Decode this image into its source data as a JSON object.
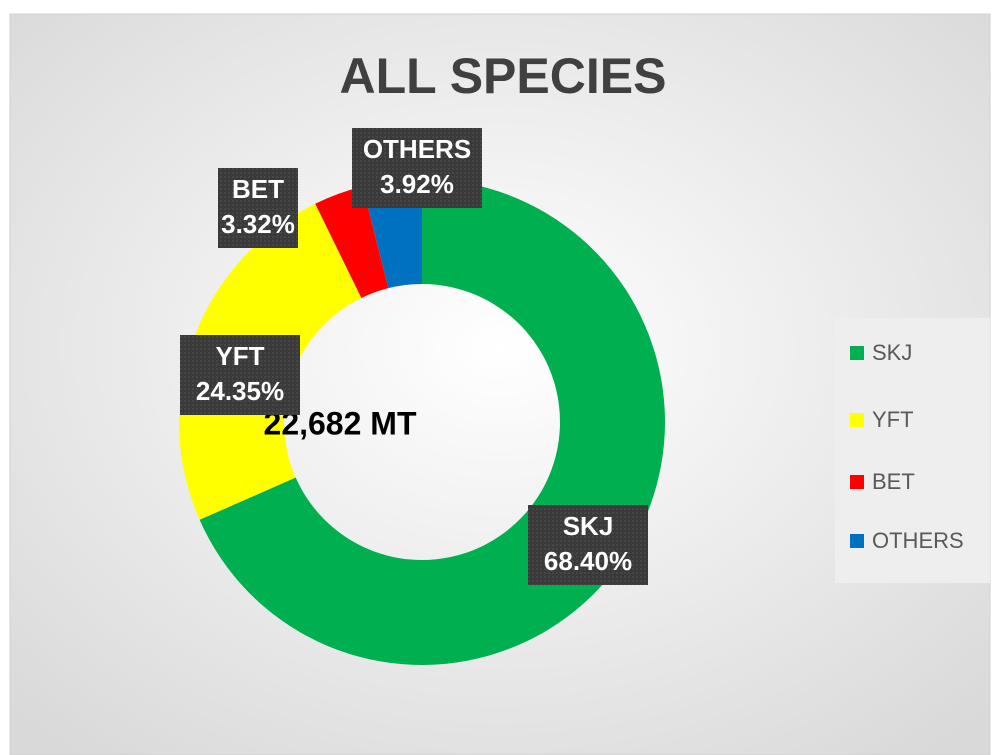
{
  "chart_data": {
    "type": "donut",
    "title": "ALL SPECIES",
    "categories": [
      "SKJ",
      "YFT",
      "BET",
      "OTHERS"
    ],
    "values": [
      68.4,
      24.35,
      3.32,
      3.92
    ],
    "value_labels": [
      "68.40%",
      "24.35%",
      "3.32%",
      "3.92%"
    ],
    "colors": [
      "#00b050",
      "#ffff00",
      "#ff0000",
      "#0070c0"
    ],
    "annotation": "22,682 MT",
    "legend": "right"
  }
}
